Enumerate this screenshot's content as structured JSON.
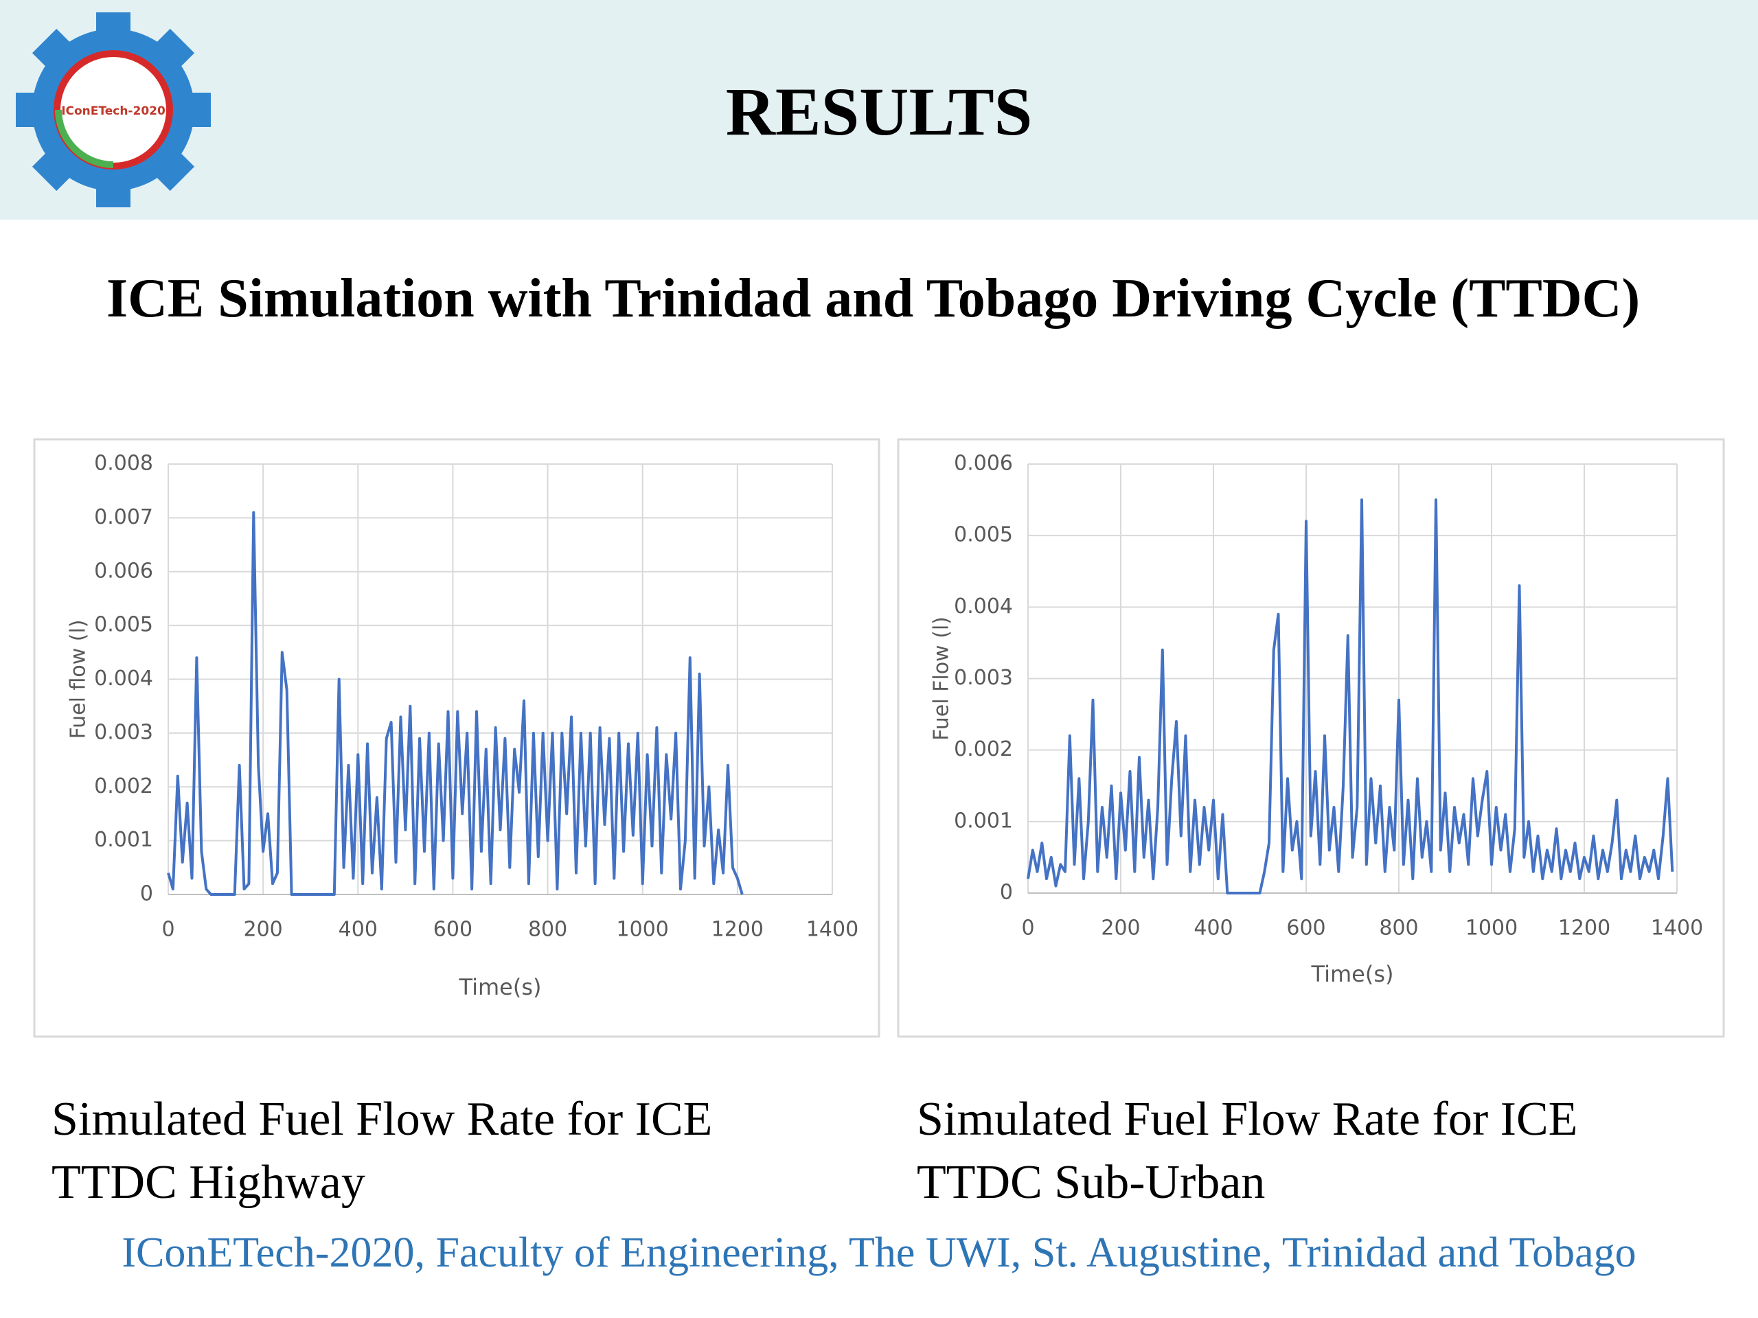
{
  "header": {
    "title": "RESULTS",
    "logo_text": "IConETech-2020"
  },
  "heading": "ICE Simulation with Trinidad and Tobago Driving Cycle (TTDC)",
  "captions": [
    "Simulated Fuel Flow Rate for ICE TTDC Highway",
    "Simulated Fuel Flow Rate for ICE TTDC Sub-Urban"
  ],
  "footer": "IConETech-2020, Faculty of Engineering, The UWI, St. Augustine, Trinidad and Tobago",
  "chart_data": [
    {
      "type": "line",
      "x_label": "Time(s)",
      "y_label": "Fuel flow (l)",
      "color": "#4472c4",
      "grid": true,
      "xlim": [
        0,
        1400
      ],
      "xticks": [
        0,
        200,
        400,
        600,
        800,
        1000,
        1200,
        1400
      ],
      "ylim": [
        0,
        0.008
      ],
      "yticks": [
        0,
        0.001,
        0.002,
        0.003,
        0.004,
        0.005,
        0.006,
        0.007,
        0.008
      ],
      "x": [
        0,
        10,
        20,
        30,
        40,
        50,
        60,
        70,
        80,
        90,
        100,
        110,
        120,
        130,
        140,
        150,
        160,
        170,
        180,
        190,
        200,
        210,
        220,
        230,
        240,
        250,
        260,
        270,
        280,
        290,
        300,
        310,
        320,
        330,
        340,
        350,
        360,
        370,
        380,
        390,
        400,
        410,
        420,
        430,
        440,
        450,
        460,
        470,
        480,
        490,
        500,
        510,
        520,
        530,
        540,
        550,
        560,
        570,
        580,
        590,
        600,
        610,
        620,
        630,
        640,
        650,
        660,
        670,
        680,
        690,
        700,
        710,
        720,
        730,
        740,
        750,
        760,
        770,
        780,
        790,
        800,
        810,
        820,
        830,
        840,
        850,
        860,
        870,
        880,
        890,
        900,
        910,
        920,
        930,
        940,
        950,
        960,
        970,
        980,
        990,
        1000,
        1010,
        1020,
        1030,
        1040,
        1050,
        1060,
        1070,
        1080,
        1090,
        1100,
        1110,
        1120,
        1130,
        1140,
        1150,
        1160,
        1170,
        1180,
        1190,
        1200,
        1210
      ],
      "values": [
        0.0004,
        0.0001,
        0.0022,
        0.0006,
        0.0017,
        0.0003,
        0.0044,
        0.0008,
        0.0001,
        0,
        0,
        0,
        0,
        0,
        0,
        0.0024,
        0.0001,
        0.0002,
        0.0071,
        0.0024,
        0.0008,
        0.0015,
        0.0002,
        0.0004,
        0.0045,
        0.0038,
        0,
        0,
        0,
        0,
        0,
        0,
        0,
        0,
        0,
        0,
        0.004,
        0.0005,
        0.0024,
        0.0003,
        0.0026,
        0.0002,
        0.0028,
        0.0004,
        0.0018,
        0.0001,
        0.0029,
        0.0032,
        0.0006,
        0.0033,
        0.0012,
        0.0035,
        0.0002,
        0.0029,
        0.0008,
        0.003,
        0.0001,
        0.0028,
        0.001,
        0.0034,
        0.0003,
        0.0034,
        0.0015,
        0.003,
        0.0001,
        0.0034,
        0.0008,
        0.0027,
        0.0002,
        0.0031,
        0.0012,
        0.0029,
        0.0005,
        0.0027,
        0.0019,
        0.0036,
        0.0002,
        0.003,
        0.0007,
        0.003,
        0.001,
        0.003,
        0.0001,
        0.003,
        0.0015,
        0.0033,
        0.0004,
        0.003,
        0.0009,
        0.003,
        0.0002,
        0.0031,
        0.0013,
        0.0029,
        0.0003,
        0.003,
        0.0008,
        0.0028,
        0.0011,
        0.003,
        0.0002,
        0.0026,
        0.0009,
        0.0031,
        0.0004,
        0.0026,
        0.0014,
        0.003,
        0.0001,
        0.001,
        0.0044,
        0.0003,
        0.0041,
        0.0009,
        0.002,
        0.0002,
        0.0012,
        0.0004,
        0.0024,
        0.0005,
        0.0003,
        0
      ]
    },
    {
      "type": "line",
      "x_label": "Time(s)",
      "y_label": "Fuel Flow (l)",
      "color": "#4472c4",
      "grid": true,
      "xlim": [
        0,
        1400
      ],
      "xticks": [
        0,
        200,
        400,
        600,
        800,
        1000,
        1200,
        1400
      ],
      "ylim": [
        0,
        0.006
      ],
      "yticks": [
        0,
        0.001,
        0.002,
        0.003,
        0.004,
        0.005,
        0.006
      ],
      "x": [
        0,
        10,
        20,
        30,
        40,
        50,
        60,
        70,
        80,
        90,
        100,
        110,
        120,
        130,
        140,
        150,
        160,
        170,
        180,
        190,
        200,
        210,
        220,
        230,
        240,
        250,
        260,
        270,
        280,
        290,
        300,
        310,
        320,
        330,
        340,
        350,
        360,
        370,
        380,
        390,
        400,
        410,
        420,
        430,
        440,
        450,
        460,
        470,
        480,
        490,
        500,
        510,
        520,
        530,
        540,
        550,
        560,
        570,
        580,
        590,
        600,
        610,
        620,
        630,
        640,
        650,
        660,
        670,
        680,
        690,
        700,
        710,
        720,
        730,
        740,
        750,
        760,
        770,
        780,
        790,
        800,
        810,
        820,
        830,
        840,
        850,
        860,
        870,
        880,
        890,
        900,
        910,
        920,
        930,
        940,
        950,
        960,
        970,
        980,
        990,
        1000,
        1010,
        1020,
        1030,
        1040,
        1050,
        1060,
        1070,
        1080,
        1090,
        1100,
        1110,
        1120,
        1130,
        1140,
        1150,
        1160,
        1170,
        1180,
        1190,
        1200,
        1210,
        1220,
        1230,
        1240,
        1250,
        1260,
        1270,
        1280,
        1290,
        1300,
        1310,
        1320,
        1330,
        1340,
        1350,
        1360,
        1370,
        1380,
        1390
      ],
      "values": [
        0.0002,
        0.0006,
        0.0003,
        0.0007,
        0.0002,
        0.0005,
        0.0001,
        0.0004,
        0.0003,
        0.0022,
        0.0004,
        0.0016,
        0.0002,
        0.001,
        0.0027,
        0.0003,
        0.0012,
        0.0005,
        0.0015,
        0.0002,
        0.0014,
        0.0006,
        0.0017,
        0.0003,
        0.0019,
        0.0005,
        0.0013,
        0.0002,
        0.0012,
        0.0034,
        0.0004,
        0.0016,
        0.0024,
        0.0008,
        0.0022,
        0.0003,
        0.0013,
        0.0004,
        0.0012,
        0.0006,
        0.0013,
        0.0002,
        0.0011,
        0,
        0,
        0,
        0,
        0,
        0,
        0,
        0,
        0.0003,
        0.0007,
        0.0034,
        0.0039,
        0.0003,
        0.0016,
        0.0006,
        0.001,
        0.0002,
        0.0052,
        0.0008,
        0.0017,
        0.0004,
        0.0022,
        0.0006,
        0.0012,
        0.0003,
        0.0015,
        0.0036,
        0.0005,
        0.0012,
        0.0055,
        0.0004,
        0.0016,
        0.0007,
        0.0015,
        0.0003,
        0.0012,
        0.0006,
        0.0027,
        0.0004,
        0.0013,
        0.0002,
        0.0016,
        0.0005,
        0.001,
        0.0003,
        0.0055,
        0.0006,
        0.0014,
        0.0003,
        0.0012,
        0.0007,
        0.0011,
        0.0004,
        0.0016,
        0.0008,
        0.0013,
        0.0017,
        0.0004,
        0.0012,
        0.0006,
        0.0011,
        0.0003,
        0.0009,
        0.0043,
        0.0005,
        0.001,
        0.0003,
        0.0008,
        0.0002,
        0.0006,
        0.0003,
        0.0009,
        0.0002,
        0.0006,
        0.0003,
        0.0007,
        0.0002,
        0.0005,
        0.0003,
        0.0008,
        0.0002,
        0.0006,
        0.0003,
        0.0007,
        0.0013,
        0.0002,
        0.0006,
        0.0003,
        0.0008,
        0.0002,
        0.0005,
        0.0003,
        0.0006,
        0.0002,
        0.0008,
        0.0016,
        0.0003
      ]
    }
  ]
}
